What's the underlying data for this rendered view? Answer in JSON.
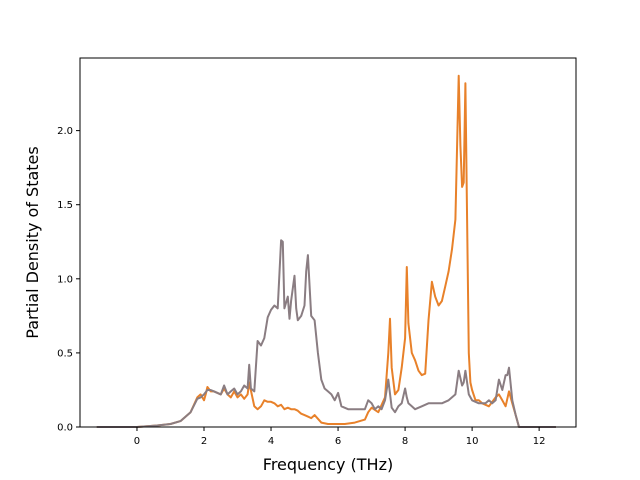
{
  "chart_data": {
    "type": "line",
    "title": "",
    "xlabel": "Frequency (THz)",
    "ylabel": "Partial Density of States",
    "xlim": [
      -1.7,
      13.1
    ],
    "ylim": [
      0,
      2.49
    ],
    "xticks": [
      0,
      2,
      4,
      6,
      8,
      10,
      12
    ],
    "xtick_labels": [
      "0",
      "2",
      "4",
      "6",
      "8",
      "10",
      "12"
    ],
    "yticks": [
      0.0,
      0.5,
      1.0,
      1.5,
      2.0
    ],
    "ytick_labels": [
      "0.0",
      "0.5",
      "1.0",
      "1.5",
      "2.0"
    ],
    "grid": false,
    "legend": "none",
    "series": [
      {
        "color": "#e8812a",
        "x": [
          -1.2,
          0.0,
          0.6,
          1.0,
          1.3,
          1.6,
          1.8,
          1.9,
          2.0,
          2.05,
          2.1,
          2.2,
          2.3,
          2.5,
          2.6,
          2.7,
          2.8,
          2.9,
          3.0,
          3.1,
          3.2,
          3.3,
          3.35,
          3.5,
          3.6,
          3.7,
          3.8,
          3.9,
          4.0,
          4.1,
          4.2,
          4.3,
          4.4,
          4.5,
          4.6,
          4.7,
          4.8,
          4.9,
          5.0,
          5.1,
          5.2,
          5.3,
          5.5,
          5.7,
          5.9,
          6.0,
          6.2,
          6.5,
          6.8,
          6.9,
          7.0,
          7.2,
          7.4,
          7.5,
          7.55,
          7.6,
          7.7,
          7.8,
          7.9,
          8.0,
          8.05,
          8.1,
          8.2,
          8.3,
          8.4,
          8.5,
          8.6,
          8.7,
          8.75,
          8.8,
          8.9,
          9.0,
          9.1,
          9.2,
          9.3,
          9.4,
          9.5,
          9.6,
          9.65,
          9.7,
          9.75,
          9.8,
          9.85,
          9.9,
          9.95,
          10.0,
          10.1,
          10.2,
          10.3,
          10.5,
          10.7,
          10.8,
          10.9,
          11.0,
          11.1,
          11.2,
          11.3,
          11.4,
          12.5
        ],
        "y": [
          0.0,
          0.0,
          0.01,
          0.02,
          0.04,
          0.1,
          0.2,
          0.22,
          0.18,
          0.22,
          0.27,
          0.24,
          0.24,
          0.22,
          0.26,
          0.22,
          0.2,
          0.24,
          0.2,
          0.22,
          0.19,
          0.22,
          0.3,
          0.14,
          0.12,
          0.14,
          0.18,
          0.17,
          0.17,
          0.16,
          0.14,
          0.15,
          0.12,
          0.13,
          0.12,
          0.12,
          0.11,
          0.09,
          0.08,
          0.07,
          0.06,
          0.08,
          0.03,
          0.02,
          0.02,
          0.02,
          0.02,
          0.03,
          0.05,
          0.1,
          0.13,
          0.1,
          0.2,
          0.5,
          0.73,
          0.4,
          0.22,
          0.25,
          0.4,
          0.6,
          1.08,
          0.7,
          0.5,
          0.45,
          0.38,
          0.35,
          0.36,
          0.72,
          0.85,
          0.98,
          0.88,
          0.82,
          0.85,
          0.95,
          1.05,
          1.2,
          1.4,
          2.37,
          1.9,
          1.62,
          1.65,
          2.32,
          1.4,
          0.5,
          0.3,
          0.25,
          0.18,
          0.18,
          0.16,
          0.14,
          0.2,
          0.22,
          0.18,
          0.14,
          0.24,
          0.16,
          0.08,
          0.0,
          0.0
        ]
      },
      {
        "color": "#8a7d82",
        "x": [
          -1.2,
          0.0,
          0.6,
          1.0,
          1.3,
          1.6,
          1.8,
          1.9,
          2.0,
          2.1,
          2.2,
          2.3,
          2.5,
          2.6,
          2.7,
          2.8,
          2.9,
          3.0,
          3.1,
          3.2,
          3.3,
          3.35,
          3.4,
          3.5,
          3.6,
          3.7,
          3.8,
          3.9,
          4.0,
          4.1,
          4.2,
          4.3,
          4.35,
          4.4,
          4.5,
          4.55,
          4.6,
          4.7,
          4.75,
          4.8,
          4.9,
          5.0,
          5.05,
          5.1,
          5.2,
          5.3,
          5.4,
          5.5,
          5.6,
          5.7,
          5.8,
          5.9,
          6.0,
          6.1,
          6.3,
          6.5,
          6.7,
          6.8,
          6.9,
          7.0,
          7.1,
          7.2,
          7.3,
          7.4,
          7.5,
          7.6,
          7.7,
          7.8,
          7.9,
          8.0,
          8.05,
          8.1,
          8.2,
          8.3,
          8.5,
          8.7,
          8.9,
          9.1,
          9.3,
          9.5,
          9.6,
          9.7,
          9.75,
          9.8,
          9.85,
          9.9,
          10.0,
          10.2,
          10.4,
          10.5,
          10.6,
          10.7,
          10.8,
          10.9,
          11.0,
          11.05,
          11.1,
          11.2,
          11.3,
          11.4,
          12.5
        ],
        "y": [
          0.0,
          0.0,
          0.01,
          0.02,
          0.04,
          0.1,
          0.19,
          0.2,
          0.22,
          0.25,
          0.25,
          0.24,
          0.22,
          0.28,
          0.22,
          0.24,
          0.26,
          0.22,
          0.24,
          0.28,
          0.26,
          0.42,
          0.26,
          0.24,
          0.58,
          0.55,
          0.6,
          0.74,
          0.79,
          0.82,
          0.8,
          1.26,
          1.25,
          0.8,
          0.88,
          0.73,
          0.85,
          1.02,
          0.8,
          0.72,
          0.75,
          0.82,
          1.05,
          1.16,
          0.75,
          0.72,
          0.5,
          0.32,
          0.26,
          0.24,
          0.22,
          0.18,
          0.23,
          0.14,
          0.12,
          0.12,
          0.12,
          0.12,
          0.18,
          0.16,
          0.12,
          0.14,
          0.12,
          0.18,
          0.32,
          0.13,
          0.1,
          0.14,
          0.16,
          0.26,
          0.2,
          0.16,
          0.14,
          0.12,
          0.14,
          0.16,
          0.16,
          0.16,
          0.18,
          0.22,
          0.38,
          0.28,
          0.3,
          0.38,
          0.3,
          0.22,
          0.18,
          0.16,
          0.16,
          0.18,
          0.16,
          0.18,
          0.32,
          0.25,
          0.35,
          0.35,
          0.4,
          0.18,
          0.08,
          0.0,
          0.0
        ]
      }
    ]
  }
}
